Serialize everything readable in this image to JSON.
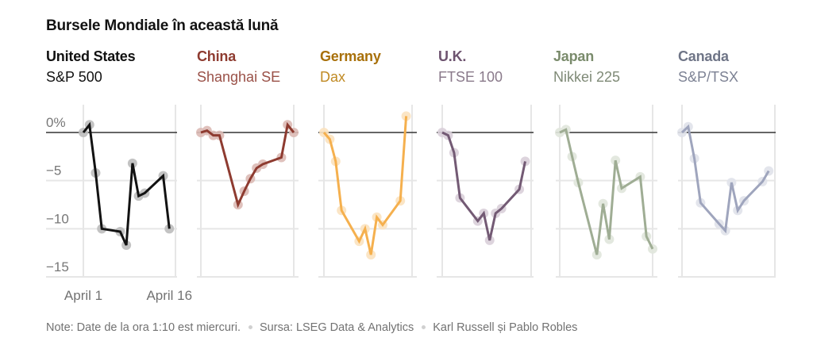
{
  "chart_data": {
    "type": "line",
    "title": "Bursele Mondiale în această lună",
    "ylabel": "",
    "xlabel": "",
    "ylim": [
      -15,
      0
    ],
    "xlim": [
      0,
      15
    ],
    "y_ticks": [
      {
        "value": 0,
        "label": "0%"
      },
      {
        "value": -5,
        "label": "−5"
      },
      {
        "value": -10,
        "label": "−10"
      },
      {
        "value": -15,
        "label": "−15"
      }
    ],
    "x_ticks": [
      {
        "value": 0,
        "label": "April 1"
      },
      {
        "value": 14,
        "label": "April 16"
      }
    ],
    "grid": true,
    "panels": [
      {
        "country": "United States",
        "index": "S&P 500",
        "color": "#121212",
        "dot_color": "#bdbdbd",
        "title_color": "#121212",
        "index_color": "#121212",
        "x": [
          0,
          1,
          2,
          3,
          6,
          7,
          8,
          9,
          10,
          13,
          14
        ],
        "values": [
          0,
          0.8,
          -4.2,
          -10.0,
          -10.3,
          -11.7,
          -3.2,
          -6.6,
          -6.3,
          -4.5,
          -10.0
        ]
      },
      {
        "country": "China",
        "index": "Shanghai SE",
        "color": "#8e3b30",
        "dot_color": "#dcbab5",
        "title_color": "#8e3b30",
        "index_color": "#9a5148",
        "x": [
          0,
          1,
          2,
          3,
          6,
          7,
          8,
          9,
          10,
          13,
          14,
          15
        ],
        "values": [
          0,
          0.2,
          -0.3,
          -0.3,
          -7.5,
          -6.1,
          -4.8,
          -3.7,
          -3.3,
          -2.6,
          0.8,
          0
        ]
      },
      {
        "country": "Germany",
        "index": "Dax",
        "color": "#f5b04e",
        "dot_color": "#fbe2bf",
        "title_color": "#a8700a",
        "index_color": "#c08a24",
        "x": [
          0,
          1,
          2,
          3,
          6,
          7,
          8,
          9,
          10,
          13,
          14
        ],
        "values": [
          0,
          -0.7,
          -3.0,
          -8.1,
          -11.3,
          -10.0,
          -12.7,
          -8.8,
          -9.6,
          -7.1,
          1.7
        ]
      },
      {
        "country": "U.K.",
        "index": "FTSE 100",
        "color": "#735a74",
        "dot_color": "#d9cfd9",
        "title_color": "#6e5470",
        "index_color": "#8a7a8b",
        "x": [
          0,
          1,
          2,
          3,
          6,
          7,
          8,
          9,
          10,
          13,
          14
        ],
        "values": [
          0,
          -0.3,
          -2.1,
          -6.8,
          -9.2,
          -8.4,
          -11.2,
          -8.4,
          -7.9,
          -5.9,
          -3.0
        ]
      },
      {
        "country": "Japan",
        "index": "Nikkei 225",
        "color": "#9fad94",
        "dot_color": "#e0e5dc",
        "title_color": "#7a8b6c",
        "index_color": "#7f8a77",
        "x": [
          0,
          1,
          2,
          3,
          6,
          7,
          8,
          9,
          10,
          13,
          14,
          15
        ],
        "values": [
          0,
          0.3,
          -2.5,
          -5.2,
          -12.7,
          -7.4,
          -11.1,
          -2.9,
          -5.8,
          -4.6,
          -10.8,
          -12.1
        ]
      },
      {
        "country": "Canada",
        "index": "S&P/TSX",
        "color": "#9fa5bd",
        "dot_color": "#e0e2ea",
        "title_color": "#6f7587",
        "index_color": "#7d8294",
        "x": [
          0,
          1,
          2,
          3,
          6,
          7,
          8,
          9,
          10,
          13,
          14
        ],
        "values": [
          0,
          0.6,
          -2.7,
          -7.3,
          -9.5,
          -10.2,
          -5.2,
          -8.1,
          -7.1,
          -5.1,
          -4.0
        ]
      }
    ]
  },
  "footer": {
    "note": "Note: Date de la ora 1:10 est miercuri.",
    "source": "Sursa: LSEG Data & Analytics",
    "credit": "Karl Russell și Pablo Robles"
  }
}
